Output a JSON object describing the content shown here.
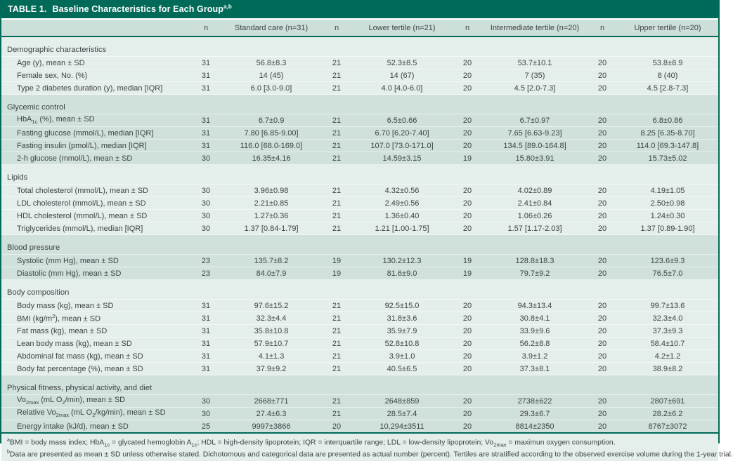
{
  "table": {
    "title_number": "TABLE 1.",
    "title_text": "Baseline Characteristics for Each Group",
    "title_sup": "a,b",
    "columns": [
      "",
      "n",
      "Standard care (n=31)",
      "n",
      "Lower tertile (n=21)",
      "n",
      "Intermediate tertile (n=20)",
      "n",
      "Upper tertile (n=20)"
    ],
    "sections": [
      {
        "label": "Demographic characteristics",
        "tone": "light",
        "rows": [
          {
            "label": "Age (y), mean ± SD",
            "values": [
              "31",
              "56.8±8.3",
              "21",
              "52.3±8.5",
              "20",
              "53.7±10.1",
              "20",
              "53.8±8.9"
            ]
          },
          {
            "label": "Female sex, No. (%)",
            "values": [
              "31",
              "14 (45)",
              "21",
              "14 (67)",
              "20",
              "7 (35)",
              "20",
              "8 (40)"
            ]
          },
          {
            "label": "Type 2 diabetes duration (y), median [IQR]",
            "values": [
              "31",
              "6.0 [3.0-9.0]",
              "21",
              "4.0 [4.0-6.0]",
              "20",
              "4.5 [2.0-7.3]",
              "20",
              "4.5 [2.8-7.3]"
            ]
          }
        ]
      },
      {
        "label": "Glycemic control",
        "tone": "dark",
        "rows": [
          {
            "label": "HbA~1c~ (%), mean ± SD",
            "values": [
              "31",
              "6.7±0.9",
              "21",
              "6.5±0.66",
              "20",
              "6.7±0.97",
              "20",
              "6.8±0.86"
            ]
          },
          {
            "label": "Fasting glucose (mmol/L), median [IQR]",
            "values": [
              "31",
              "7.80 [6.85-9.00]",
              "21",
              "6.70 [6.20-7.40]",
              "20",
              "7.65 [6.63-9.23]",
              "20",
              "8.25 [6.35-8.70]"
            ]
          },
          {
            "label": "Fasting insulin (pmol/L), median [IQR]",
            "values": [
              "31",
              "116.0 [68.0-169.0]",
              "21",
              "107.0 [73.0-171.0]",
              "20",
              "134.5 [89.0-164.8]",
              "20",
              "114.0 [69.3-147.8]"
            ]
          },
          {
            "label": "2-h glucose (mmol/L), mean ± SD",
            "values": [
              "30",
              "16.35±4.16",
              "21",
              "14.59±3.15",
              "19",
              "15.80±3.91",
              "20",
              "15.73±5.02"
            ]
          }
        ]
      },
      {
        "label": "Lipids",
        "tone": "light",
        "rows": [
          {
            "label": "Total cholesterol (mmol/L), mean ± SD",
            "values": [
              "30",
              "3.96±0.98",
              "21",
              "4.32±0.56",
              "20",
              "4.02±0.89",
              "20",
              "4.19±1.05"
            ]
          },
          {
            "label": "LDL cholesterol (mmol/L), mean ± SD",
            "values": [
              "30",
              "2.21±0.85",
              "21",
              "2.49±0.56",
              "20",
              "2.41±0.84",
              "20",
              "2.50±0.98"
            ]
          },
          {
            "label": "HDL cholesterol (mmol/L), mean ± SD",
            "values": [
              "30",
              "1.27±0.36",
              "21",
              "1.36±0.40",
              "20",
              "1.06±0.26",
              "20",
              "1.24±0.30"
            ]
          },
          {
            "label": "Triglycerides (mmol/L), median [IQR]",
            "values": [
              "30",
              "1.37 [0.84-1.79]",
              "21",
              "1.21 [1.00-1.75]",
              "20",
              "1.57 [1.17-2.03]",
              "20",
              "1.37 [0.89-1.90]"
            ]
          }
        ]
      },
      {
        "label": "Blood pressure",
        "tone": "dark",
        "rows": [
          {
            "label": "Systolic (mm Hg), mean ± SD",
            "values": [
              "23",
              "135.7±8.2",
              "19",
              "130.2±12.3",
              "19",
              "128.8±18.3",
              "20",
              "123.6±9.3"
            ]
          },
          {
            "label": "Diastolic (mm Hg), mean ± SD",
            "values": [
              "23",
              "84.0±7.9",
              "19",
              "81.6±9.0",
              "19",
              "79.7±9.2",
              "20",
              "76.5±7.0"
            ]
          }
        ]
      },
      {
        "label": "Body composition",
        "tone": "light",
        "rows": [
          {
            "label": "Body mass (kg), mean ± SD",
            "values": [
              "31",
              "97.6±15.2",
              "21",
              "92.5±15.0",
              "20",
              "94.3±13.4",
              "20",
              "99.7±13.6"
            ]
          },
          {
            "label": "BMI (kg/m^2^), mean ± SD",
            "values": [
              "31",
              "32.3±4.4",
              "21",
              "31.8±3.6",
              "20",
              "30.8±4.1",
              "20",
              "32.3±4.0"
            ]
          },
          {
            "label": "Fat mass (kg), mean ± SD",
            "values": [
              "31",
              "35.8±10.8",
              "21",
              "35.9±7.9",
              "20",
              "33.9±9.6",
              "20",
              "37.3±9.3"
            ]
          },
          {
            "label": "Lean body mass (kg), mean ± SD",
            "values": [
              "31",
              "57.9±10.7",
              "21",
              "52.8±10.8",
              "20",
              "56.2±8.8",
              "20",
              "58.4±10.7"
            ]
          },
          {
            "label": "Abdominal fat mass (kg), mean ± SD",
            "values": [
              "31",
              "4.1±1.3",
              "21",
              "3.9±1.0",
              "20",
              "3.9±1.2",
              "20",
              "4.2±1.2"
            ]
          },
          {
            "label": "Body fat percentage (%), mean ± SD",
            "values": [
              "31",
              "37.9±9.2",
              "21",
              "40.5±6.5",
              "20",
              "37.3±8.1",
              "20",
              "38.9±8.2"
            ]
          }
        ]
      },
      {
        "label": "Physical fitness, physical activity, and diet",
        "tone": "dark",
        "rows": [
          {
            "label": "Vo~2max~ (mL O~2~/min), mean ± SD",
            "values": [
              "30",
              "2668±771",
              "21",
              "2648±859",
              "20",
              "2738±622",
              "20",
              "2807±691"
            ]
          },
          {
            "label": "Relative Vo~2max~ (mL O~2~/kg/min), mean ± SD",
            "values": [
              "30",
              "27.4±6.3",
              "21",
              "28.5±7.4",
              "20",
              "29.3±6.7",
              "20",
              "28.2±6.2"
            ]
          },
          {
            "label": "Energy intake (kJ/d), mean ± SD",
            "values": [
              "25",
              "9997±3866",
              "20",
              "10,294±3511",
              "20",
              "8814±2350",
              "20",
              "8767±3072"
            ]
          }
        ]
      }
    ],
    "footnotes": [
      {
        "mark": "a",
        "text": "BMI = body mass index; HbA~1c~ = glycated hemoglobin A~1c~; HDL = high-density lipoprotein; IQR = interquartile range; LDL = low-density lipoprotein; Vo~2max~ = maximun oxygen consumption."
      },
      {
        "mark": "b",
        "text": "Data are presented as mean ± SD unless otherwise stated. Dichotomous and categorical data are presented as actual number (percent). Tertiles are stratified according to the observed exercise volume during the 1-year trial."
      }
    ]
  },
  "colors": {
    "teal_accent": "#006a58",
    "header_band": "#cfe1da",
    "light_band": "#e4eeea",
    "title_text": "#ffffff",
    "body_text": "#3f4345"
  }
}
